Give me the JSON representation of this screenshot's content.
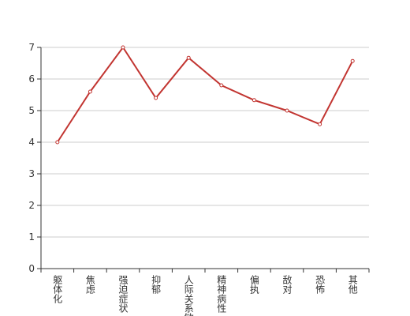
{
  "chart_data": {
    "type": "line",
    "categories": [
      "躯体化",
      "焦虑",
      "强迫症状",
      "抑郁",
      "人际关系敏感",
      "精神病性",
      "偏执",
      "敌对",
      "恐怖",
      "其他"
    ],
    "values": [
      4.0,
      5.6,
      7.0,
      5.4,
      6.67,
      5.8,
      5.33,
      5.0,
      4.57,
      6.57
    ],
    "color": "#c23531",
    "ylim": [
      0,
      7
    ],
    "yticks": [
      0,
      1,
      2,
      3,
      4,
      5,
      6,
      7
    ],
    "grid": true
  }
}
